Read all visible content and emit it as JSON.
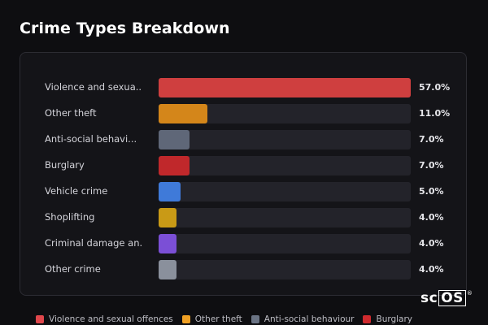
{
  "header": {
    "title": "Crime Types Breakdown"
  },
  "chart_data": {
    "type": "bar",
    "orientation": "horizontal",
    "title": "Crime Types Breakdown",
    "categories": [
      "Violence and sexua...",
      "Other theft",
      "Anti-social behavi...",
      "Burglary",
      "Vehicle crime",
      "Shoplifting",
      "Criminal damage an...",
      "Other crime"
    ],
    "values": [
      57.0,
      11.0,
      7.0,
      7.0,
      5.0,
      4.0,
      4.0,
      4.0
    ],
    "value_labels": [
      "57.0%",
      "11.0%",
      "7.0%",
      "7.0%",
      "5.0%",
      "4.0%",
      "4.0%",
      "4.0%"
    ],
    "colors": [
      "#cf3f3f",
      "#d4861a",
      "#5f6778",
      "#c0282b",
      "#3f7ad9",
      "#c99a16",
      "#7b4fd6",
      "#8a909c"
    ],
    "xlim": [
      0,
      57
    ],
    "grid": false,
    "legend_position": "bottom-left"
  },
  "legend": {
    "items": [
      {
        "label": "Violence and sexual offences",
        "color": "#e0474c"
      },
      {
        "label": "Other theft",
        "color": "#efa024"
      },
      {
        "label": "Anti-social behaviour",
        "color": "#6a7384"
      },
      {
        "label": "Burglary",
        "color": "#cf2a2e"
      }
    ]
  },
  "logo": {
    "prefix": "sc",
    "boxed": "OS",
    "mark": "®"
  }
}
